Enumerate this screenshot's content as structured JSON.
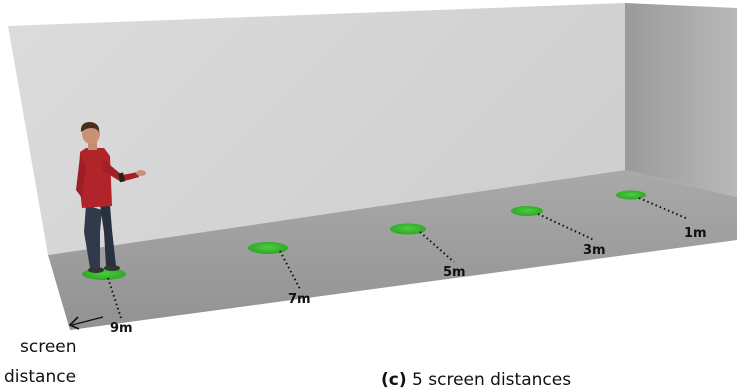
{
  "colors": {
    "floor": "#9d9d9d",
    "back_wall": "#d2d2d2",
    "right_wall": "#a7a7a7",
    "marker": "#33b52b",
    "marker_edge": "#1e8a18"
  },
  "markers": [
    {
      "id": "marker-9m",
      "label": "9m"
    },
    {
      "id": "marker-7m",
      "label": "7m"
    },
    {
      "id": "marker-5m",
      "label": "5m"
    },
    {
      "id": "marker-3m",
      "label": "3m"
    },
    {
      "id": "marker-1m",
      "label": "1m"
    }
  ],
  "axis": {
    "line1": "screen",
    "line2": "distance"
  },
  "caption": {
    "tag": "(c)",
    "text": "5 screen distances"
  }
}
